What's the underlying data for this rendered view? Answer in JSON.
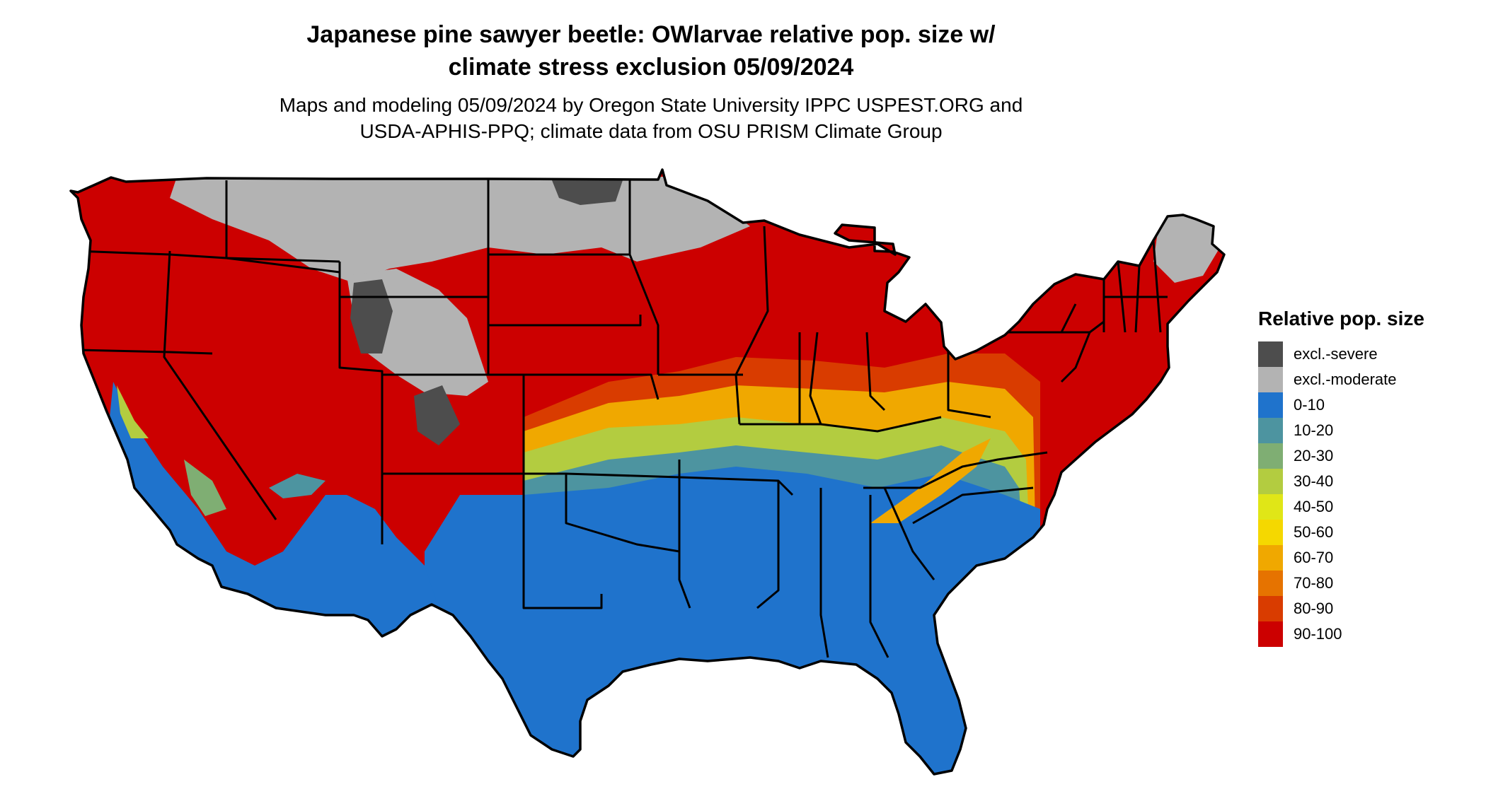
{
  "title": {
    "line1": "Japanese pine sawyer beetle: OWlarvae relative pop. size w/",
    "line2": "climate stress exclusion 05/09/2024"
  },
  "subtitle": {
    "line1": "Maps and modeling 05/09/2024 by Oregon State University IPPC USPEST.ORG and",
    "line2": "USDA-APHIS-PPQ; climate data from OSU PRISM Climate Group"
  },
  "legend": {
    "title": "Relative pop. size",
    "items": [
      {
        "label": "excl.-severe",
        "color": "#4d4d4d"
      },
      {
        "label": "excl.-moderate",
        "color": "#b3b3b3"
      },
      {
        "label": "0-10",
        "color": "#1f73cc"
      },
      {
        "label": "10-20",
        "color": "#4d94a0"
      },
      {
        "label": "20-30",
        "color": "#7fae73"
      },
      {
        "label": "30-40",
        "color": "#b3cc40"
      },
      {
        "label": "40-50",
        "color": "#e0e617"
      },
      {
        "label": "50-60",
        "color": "#f5d800"
      },
      {
        "label": "60-70",
        "color": "#f0a800"
      },
      {
        "label": "70-80",
        "color": "#e67300"
      },
      {
        "label": "80-90",
        "color": "#d93c00"
      },
      {
        "label": "90-100",
        "color": "#cc0000"
      }
    ]
  }
}
